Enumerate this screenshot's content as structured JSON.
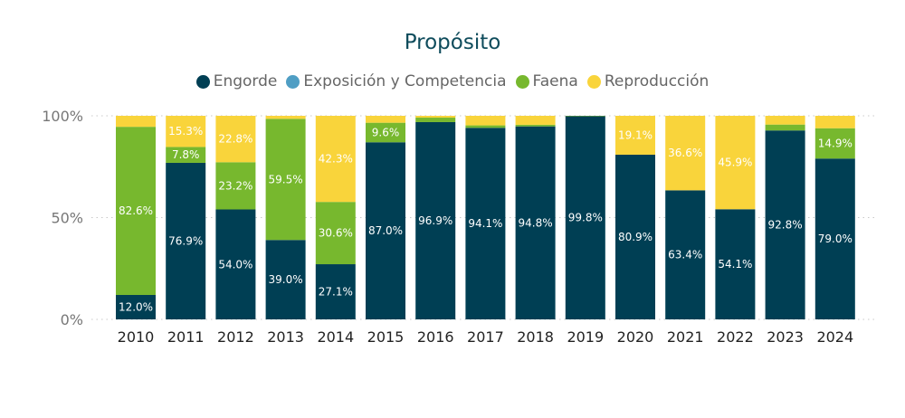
{
  "chart_data": {
    "type": "bar",
    "stacked": true,
    "title": "Propósito",
    "categories": [
      "2010",
      "2011",
      "2012",
      "2013",
      "2014",
      "2015",
      "2016",
      "2017",
      "2018",
      "2019",
      "2020",
      "2021",
      "2022",
      "2023",
      "2024"
    ],
    "series": [
      {
        "name": "Engorde",
        "color": "#003f54",
        "values": [
          12.0,
          76.9,
          54.0,
          39.0,
          27.1,
          87.0,
          96.9,
          94.1,
          94.8,
          99.8,
          80.9,
          63.4,
          54.1,
          92.8,
          79.0
        ]
      },
      {
        "name": "Exposición y Competencia",
        "color": "#4f9ec4",
        "values": [
          0,
          0,
          0,
          0,
          0,
          0,
          0,
          0,
          0,
          0,
          0,
          0,
          0,
          0,
          0
        ]
      },
      {
        "name": "Faena",
        "color": "#77b82e",
        "values": [
          82.6,
          7.8,
          23.2,
          59.5,
          30.6,
          9.6,
          2.2,
          1.2,
          0.8,
          0.2,
          0,
          0,
          0,
          2.9,
          14.9
        ]
      },
      {
        "name": "Reproducción",
        "color": "#f9d43b",
        "values": [
          5.4,
          15.3,
          22.8,
          1.5,
          42.3,
          3.4,
          0.9,
          4.7,
          4.4,
          0,
          19.1,
          36.6,
          45.9,
          4.3,
          6.1
        ]
      }
    ],
    "data_labels": [
      {
        "category": "2010",
        "series": "Engorde",
        "text": "12.0%"
      },
      {
        "category": "2010",
        "series": "Faena",
        "text": "82.6%"
      },
      {
        "category": "2011",
        "series": "Engorde",
        "text": "76.9%"
      },
      {
        "category": "2011",
        "series": "Faena",
        "text": "7.8%"
      },
      {
        "category": "2011",
        "series": "Reproducción",
        "text": "15.3%"
      },
      {
        "category": "2012",
        "series": "Engorde",
        "text": "54.0%"
      },
      {
        "category": "2012",
        "series": "Faena",
        "text": "23.2%"
      },
      {
        "category": "2012",
        "series": "Reproducción",
        "text": "22.8%"
      },
      {
        "category": "2013",
        "series": "Engorde",
        "text": "39.0%"
      },
      {
        "category": "2013",
        "series": "Faena",
        "text": "59.5%"
      },
      {
        "category": "2014",
        "series": "Engorde",
        "text": "27.1%"
      },
      {
        "category": "2014",
        "series": "Faena",
        "text": "30.6%"
      },
      {
        "category": "2014",
        "series": "Reproducción",
        "text": "42.3%"
      },
      {
        "category": "2015",
        "series": "Engorde",
        "text": "87.0%"
      },
      {
        "category": "2015",
        "series": "Faena",
        "text": "9.6%"
      },
      {
        "category": "2016",
        "series": "Engorde",
        "text": "96.9%"
      },
      {
        "category": "2017",
        "series": "Engorde",
        "text": "94.1%"
      },
      {
        "category": "2018",
        "series": "Engorde",
        "text": "94.8%"
      },
      {
        "category": "2019",
        "series": "Engorde",
        "text": "99.8%"
      },
      {
        "category": "2020",
        "series": "Engorde",
        "text": "80.9%"
      },
      {
        "category": "2020",
        "series": "Reproducción",
        "text": "19.1%"
      },
      {
        "category": "2021",
        "series": "Engorde",
        "text": "63.4%"
      },
      {
        "category": "2021",
        "series": "Reproducción",
        "text": "36.6%"
      },
      {
        "category": "2022",
        "series": "Engorde",
        "text": "54.1%"
      },
      {
        "category": "2022",
        "series": "Reproducción",
        "text": "45.9%"
      },
      {
        "category": "2023",
        "series": "Engorde",
        "text": "92.8%"
      },
      {
        "category": "2024",
        "series": "Engorde",
        "text": "79.0%"
      },
      {
        "category": "2024",
        "series": "Faena",
        "text": "14.9%"
      }
    ],
    "yticks": [
      "0%",
      "50%",
      "100%"
    ],
    "ylim": [
      0,
      100
    ],
    "grid": true,
    "legend_position": "top-center",
    "data_label_colors": {
      "Engorde": "#ffffff",
      "Faena": "#ffffff",
      "Reproducción": "#ffffff"
    }
  }
}
